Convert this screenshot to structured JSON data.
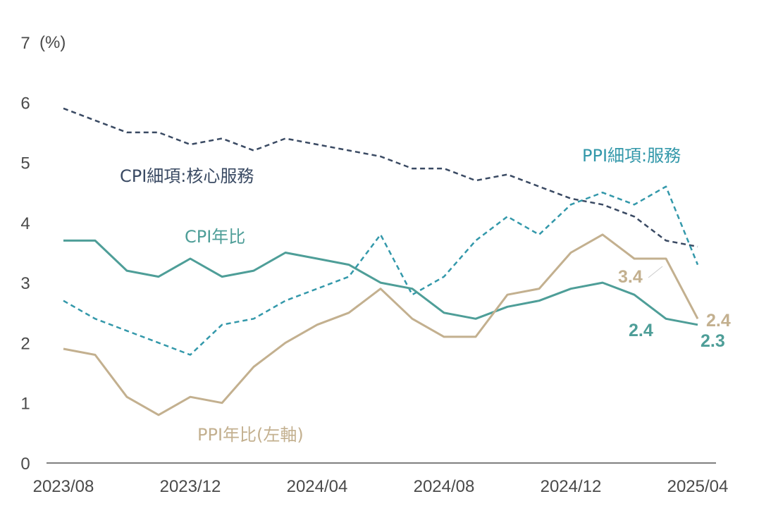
{
  "chart_data": {
    "type": "line",
    "ylim": [
      0,
      7
    ],
    "yticks": [
      "0",
      "1",
      "2",
      "3",
      "4",
      "5",
      "6",
      "7"
    ],
    "yunit": "(%)",
    "xticks": [
      "2023/08",
      "2023/12",
      "2024/04",
      "2024/08",
      "2024/12",
      "2025/04"
    ],
    "x": [
      "2023/08",
      "2023/09",
      "2023/10",
      "2023/11",
      "2023/12",
      "2024/01",
      "2024/02",
      "2024/03",
      "2024/04",
      "2024/05",
      "2024/06",
      "2024/07",
      "2024/08",
      "2024/09",
      "2024/10",
      "2024/11",
      "2024/12",
      "2025/01",
      "2025/02",
      "2025/03",
      "2025/04"
    ],
    "grid": false,
    "series": [
      {
        "name": "CPI細項:核心服務",
        "color": "#3a4a63",
        "dash": true,
        "values": [
          5.9,
          5.7,
          5.5,
          5.5,
          5.3,
          5.4,
          5.2,
          5.4,
          5.3,
          5.2,
          5.1,
          4.9,
          4.9,
          4.7,
          4.8,
          4.6,
          4.4,
          4.3,
          4.1,
          3.7,
          3.6
        ]
      },
      {
        "name": "PPI細項:服務",
        "color": "#3398aa",
        "dash": true,
        "values": [
          2.7,
          2.4,
          2.2,
          2.0,
          1.8,
          2.3,
          2.4,
          2.7,
          2.9,
          3.1,
          3.8,
          2.8,
          3.1,
          3.7,
          4.1,
          3.8,
          4.3,
          4.5,
          4.3,
          4.6,
          3.3
        ]
      },
      {
        "name": "CPI年比",
        "color": "#4e9e98",
        "dash": false,
        "values": [
          3.7,
          3.7,
          3.2,
          3.1,
          3.4,
          3.1,
          3.2,
          3.5,
          3.4,
          3.3,
          3.0,
          2.9,
          2.5,
          2.4,
          2.6,
          2.7,
          2.9,
          3.0,
          2.8,
          2.4,
          2.3
        ]
      },
      {
        "name": "PPI年比(左軸)",
        "color": "#c3b08f",
        "dash": false,
        "values": [
          1.9,
          1.8,
          1.1,
          0.8,
          1.1,
          1.0,
          1.6,
          2.0,
          2.3,
          2.5,
          2.9,
          2.4,
          2.1,
          2.1,
          2.8,
          2.9,
          3.5,
          3.8,
          3.4,
          3.4,
          2.4
        ]
      }
    ],
    "annotations": [
      {
        "text": "3.4",
        "series": 3
      },
      {
        "text": "2.4",
        "series": 3
      },
      {
        "text": "2.4",
        "series": 2
      },
      {
        "text": "2.3",
        "series": 2
      }
    ]
  }
}
